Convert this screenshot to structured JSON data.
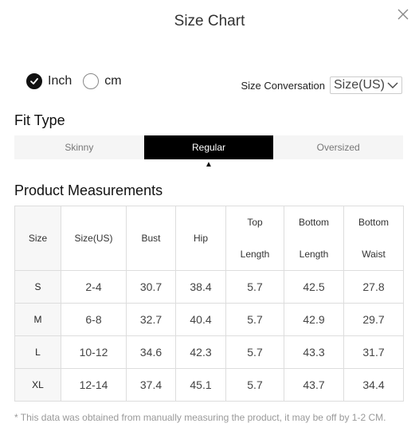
{
  "modal": {
    "title": "Size Chart",
    "close_icon": "close-icon"
  },
  "units": {
    "inch_label": "Inch",
    "cm_label": "cm",
    "selected": "Inch"
  },
  "conversion": {
    "label": "Size Conversation",
    "selected": "Size(US)"
  },
  "fit_type": {
    "heading": "Fit Type",
    "tabs": [
      "Skinny",
      "Regular",
      "Oversized"
    ],
    "active": "Regular"
  },
  "measurements": {
    "heading": "Product Measurements",
    "headers": [
      [
        "Size"
      ],
      [
        "Size(US)"
      ],
      [
        "Bust"
      ],
      [
        "Hip"
      ],
      [
        "Top",
        "Length"
      ],
      [
        "Bottom",
        "Length"
      ],
      [
        "Bottom",
        "Waist"
      ]
    ],
    "rows": [
      [
        "S",
        "2-4",
        "30.7",
        "38.4",
        "5.7",
        "42.5",
        "27.8"
      ],
      [
        "M",
        "6-8",
        "32.7",
        "40.4",
        "5.7",
        "42.9",
        "29.7"
      ],
      [
        "L",
        "10-12",
        "34.6",
        "42.3",
        "5.7",
        "43.3",
        "31.7"
      ],
      [
        "XL",
        "12-14",
        "37.4",
        "45.1",
        "5.7",
        "43.7",
        "34.4"
      ]
    ]
  },
  "note": "* This data was obtained from manually measuring the product, it may be off by 1-2 CM."
}
